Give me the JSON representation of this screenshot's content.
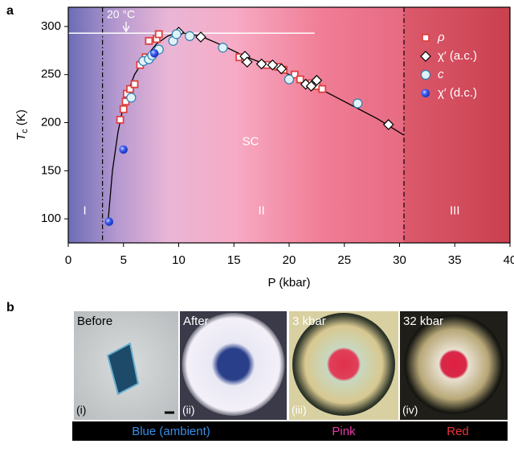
{
  "panel_labels": [
    "a",
    "b"
  ],
  "chart_data": {
    "type": "scatter",
    "xlabel": "P (kbar)",
    "ylabel": {
      "symbol": "T",
      "subscript": "c",
      "unit": "(K)"
    },
    "xlim": [
      0,
      40
    ],
    "ylim": [
      75,
      320
    ],
    "xticks": [
      0,
      5,
      10,
      15,
      20,
      25,
      30,
      35,
      40
    ],
    "yticks": [
      100,
      150,
      200,
      250,
      300
    ],
    "legend": "upper right",
    "series": [
      {
        "name": "ρ",
        "marker": "square",
        "color": "#e0403f",
        "x": [
          4.7,
          5,
          5.2,
          5.3,
          5.6,
          6,
          6.5,
          7,
          7.3,
          8,
          8.2,
          15.5,
          16,
          18,
          19,
          19.5,
          20.5,
          21,
          22,
          22.5,
          23
        ],
        "values": [
          203,
          214,
          222,
          230,
          235,
          240,
          260,
          268,
          285,
          287,
          292,
          268,
          266,
          260,
          258,
          255,
          250,
          245,
          241,
          238,
          235
        ]
      },
      {
        "name": "χ′ (a.c.)",
        "marker": "diamond",
        "color": "#000000",
        "x": [
          10,
          12,
          16,
          16.2,
          17.5,
          18.5,
          19.3,
          21.5,
          22,
          22.5,
          29
        ],
        "values": [
          294,
          289,
          269,
          263,
          261,
          260,
          256,
          240,
          238,
          244,
          198
        ]
      },
      {
        "name": "c",
        "marker": "circle",
        "color": "#2a7fb0",
        "x": [
          5.7,
          6.8,
          7.3,
          7.6,
          8.2,
          9.5,
          9.8,
          11,
          14,
          20,
          26.2
        ],
        "values": [
          226,
          264,
          266,
          270,
          276,
          285,
          292,
          290,
          278,
          245,
          220
        ]
      },
      {
        "name": "χ′ (d.c.)",
        "marker": "sphere",
        "color": "#2f4fe8",
        "x": [
          3.7,
          5,
          7.8
        ],
        "values": [
          97,
          172,
          272
        ]
      }
    ],
    "fit_line": {
      "x": [
        3.6,
        4,
        4.5,
        5,
        5.5,
        6,
        7,
        8,
        9,
        10,
        12,
        14,
        16,
        18,
        20,
        22,
        24,
        26,
        28,
        30.4
      ],
      "values": [
        97,
        150,
        190,
        218,
        235,
        250,
        268,
        282,
        290,
        294,
        290,
        280,
        269,
        260,
        250,
        240,
        228,
        216,
        204,
        187
      ]
    },
    "phase_boundaries": [
      3.1,
      30.4
    ],
    "room_temperature": {
      "value": 293,
      "label": "20 °C",
      "x_end": 22.3
    },
    "annotations": [
      {
        "text": "SC",
        "x": 16.5,
        "y": 180
      },
      {
        "text": "I",
        "x": 1.5,
        "y": 108
      },
      {
        "text": "II",
        "x": 17.5,
        "y": 108
      },
      {
        "text": "III",
        "x": 35,
        "y": 108
      }
    ]
  },
  "photos": [
    {
      "label": "Before",
      "index": "(i)"
    },
    {
      "label": "After",
      "index": "(ii)"
    },
    {
      "label": "3 kbar",
      "index": "(iii)"
    },
    {
      "label": "32 kbar",
      "index": "(iv)"
    }
  ],
  "color_bar": [
    {
      "text": "Blue (ambient)",
      "color": "#3a8ee6"
    },
    {
      "text": "Pink",
      "color": "#e83aa8"
    },
    {
      "text": "Red",
      "color": "#e8343a"
    }
  ]
}
